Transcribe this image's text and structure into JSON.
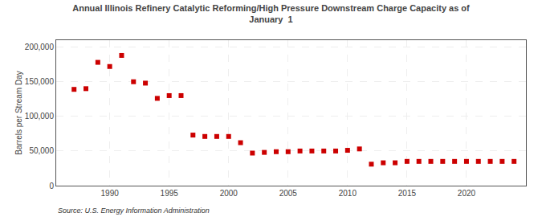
{
  "chart_data": {
    "type": "scatter",
    "title": "Annual Illinois Refinery Catalytic Reforming/High Pressure Downstream Charge Capacity as of\nJanuary  1",
    "ylabel": "Barrels per Stream Day",
    "annotations": [
      "Source: U.S. Energy Information Administration"
    ],
    "x": [
      1987,
      1988,
      1989,
      1990,
      1991,
      1992,
      1993,
      1994,
      1995,
      1996,
      1997,
      1998,
      1999,
      2000,
      2001,
      2002,
      2003,
      2004,
      2005,
      2006,
      2007,
      2008,
      2009,
      2010,
      2011,
      2012,
      2013,
      2014,
      2015,
      2016,
      2017,
      2018,
      2019,
      2020,
      2021,
      2022,
      2023,
      2024
    ],
    "values": [
      139000,
      140000,
      178000,
      172000,
      188000,
      150000,
      148000,
      126000,
      130000,
      130000,
      73000,
      71000,
      71000,
      71000,
      62000,
      47000,
      48000,
      49000,
      49000,
      50000,
      50000,
      50000,
      50000,
      51000,
      53000,
      31000,
      33000,
      33000,
      35000,
      35000,
      35000,
      35000,
      35000,
      35000,
      35000,
      35000,
      35000,
      35000
    ],
    "color": "#cc0000",
    "marker": "square",
    "xlim": [
      1985.5,
      2025
    ],
    "xticks": [
      1990,
      1995,
      2000,
      2005,
      2010,
      2015,
      2020
    ],
    "ylim": [
      0,
      210000
    ],
    "yticks": [
      0,
      {
        "value": 50000,
        "label": "50,000"
      },
      {
        "value": 100000,
        "label": "100,000"
      },
      {
        "value": 150000,
        "label": "150,000"
      },
      {
        "value": 200000,
        "label": "200,000"
      }
    ],
    "grid": true
  }
}
